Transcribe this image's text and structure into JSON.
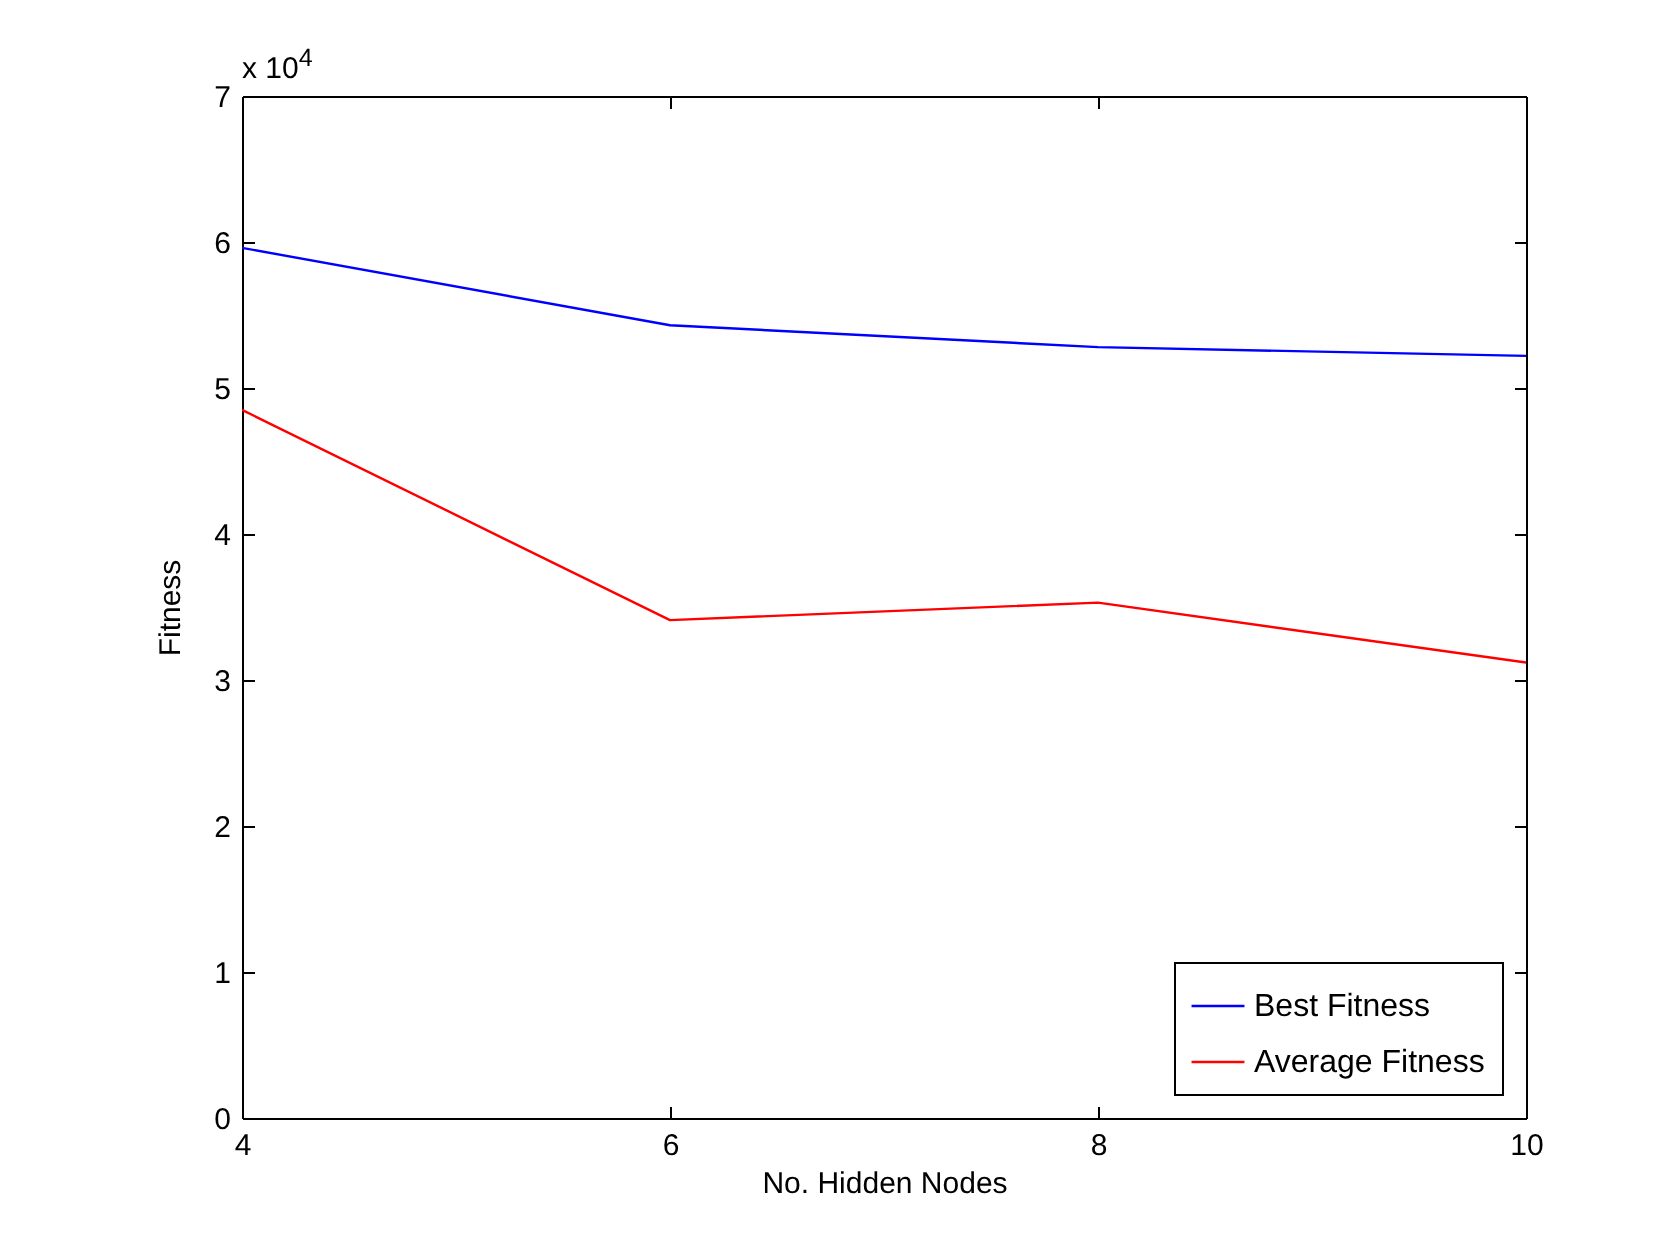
{
  "chart_data": {
    "type": "line",
    "xlabel": "No. Hidden Nodes",
    "ylabel": "Fitness",
    "annotations": [
      "x 10$^{4}$"
    ],
    "x": [
      4,
      6,
      8,
      10
    ],
    "series": [
      {
        "name": "Best Fitness",
        "color": "#0000ff",
        "values": [
          5.96,
          5.43,
          5.28,
          5.22
        ]
      },
      {
        "name": "Average Fitness",
        "color": "#ff0000",
        "values": [
          4.85,
          3.41,
          3.53,
          3.12
        ]
      }
    ],
    "xlim": [
      4,
      10
    ],
    "xticks": [
      4,
      6,
      8,
      10
    ],
    "ylim": [
      0,
      7
    ],
    "yticks": [
      0,
      1,
      2,
      3,
      4,
      5,
      6,
      7
    ],
    "grid": false,
    "legend": "bottom right",
    "marker": "none",
    "line_style": "solid"
  }
}
